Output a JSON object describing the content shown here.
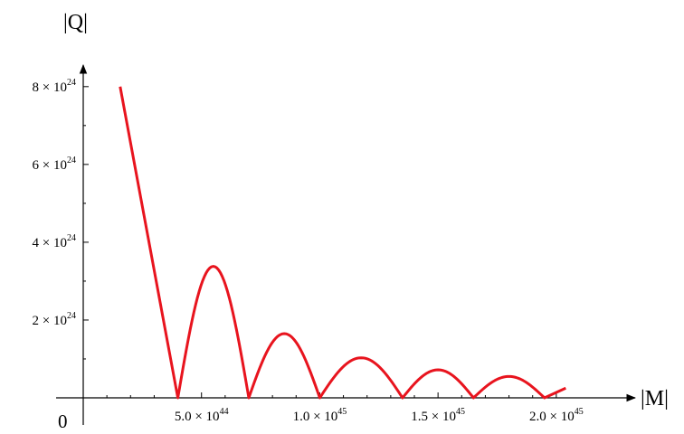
{
  "chart_data": {
    "type": "line",
    "title": "",
    "xlabel": "|M|",
    "ylabel": "|Q|",
    "origin_label": "0",
    "xlim": [
      0,
      2.1e+45
    ],
    "ylim": [
      0,
      8.6e+24
    ],
    "x_ticks": [
      {
        "value": 5e+44,
        "mantissa": "5.0",
        "times": "×",
        "base": "10",
        "exponent": "44"
      },
      {
        "value": 1e+45,
        "mantissa": "1.0",
        "times": "×",
        "base": "10",
        "exponent": "45"
      },
      {
        "value": 1.5e+45,
        "mantissa": "1.5",
        "times": "×",
        "base": "10",
        "exponent": "45"
      },
      {
        "value": 2e+45,
        "mantissa": "2.0",
        "times": "×",
        "base": "10",
        "exponent": "45"
      }
    ],
    "y_ticks": [
      {
        "value": 2e+24,
        "mantissa": "2",
        "times": "×",
        "base": "10",
        "exponent": "24"
      },
      {
        "value": 4e+24,
        "mantissa": "4",
        "times": "×",
        "base": "10",
        "exponent": "24"
      },
      {
        "value": 6e+24,
        "mantissa": "6",
        "times": "×",
        "base": "10",
        "exponent": "24"
      },
      {
        "value": 8e+24,
        "mantissa": "8",
        "times": "×",
        "base": "10",
        "exponent": "24"
      }
    ],
    "grid": false,
    "series": [
      {
        "color": "#e8141e",
        "shape": "abs-oscillating",
        "start": [
          1.56e+44,
          8e+24
        ],
        "zeros": [
          4e+44,
          7e+44,
          1e+45,
          1.35e+45,
          1.65e+45,
          1.95e+45
        ],
        "peaks": [
          3.38e+24,
          1.65e+24,
          1.03e+24,
          7.2e+23,
          5.5e+23
        ],
        "end": [
          2.04e+45,
          2.5e+23
        ]
      }
    ]
  }
}
